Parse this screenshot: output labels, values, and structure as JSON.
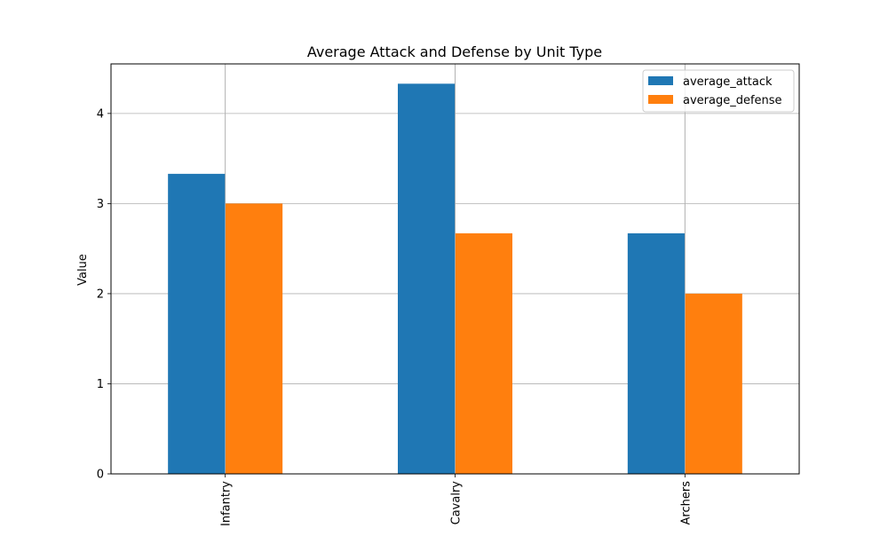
{
  "chart_data": {
    "type": "bar",
    "title": "Average Attack and Defense by Unit Type",
    "xlabel": "",
    "ylabel": "Value",
    "categories": [
      "Infantry",
      "Cavalry",
      "Archers"
    ],
    "series": [
      {
        "name": "average_attack",
        "values": [
          3.33,
          4.33,
          2.67
        ],
        "color": "#1f77b4"
      },
      {
        "name": "average_defense",
        "values": [
          3.0,
          2.67,
          2.0
        ],
        "color": "#ff7f0e"
      }
    ],
    "ylim": [
      0,
      4.55
    ],
    "yticks": [
      0,
      1,
      2,
      3,
      4
    ],
    "grid": true,
    "legend_position": "top-right"
  }
}
